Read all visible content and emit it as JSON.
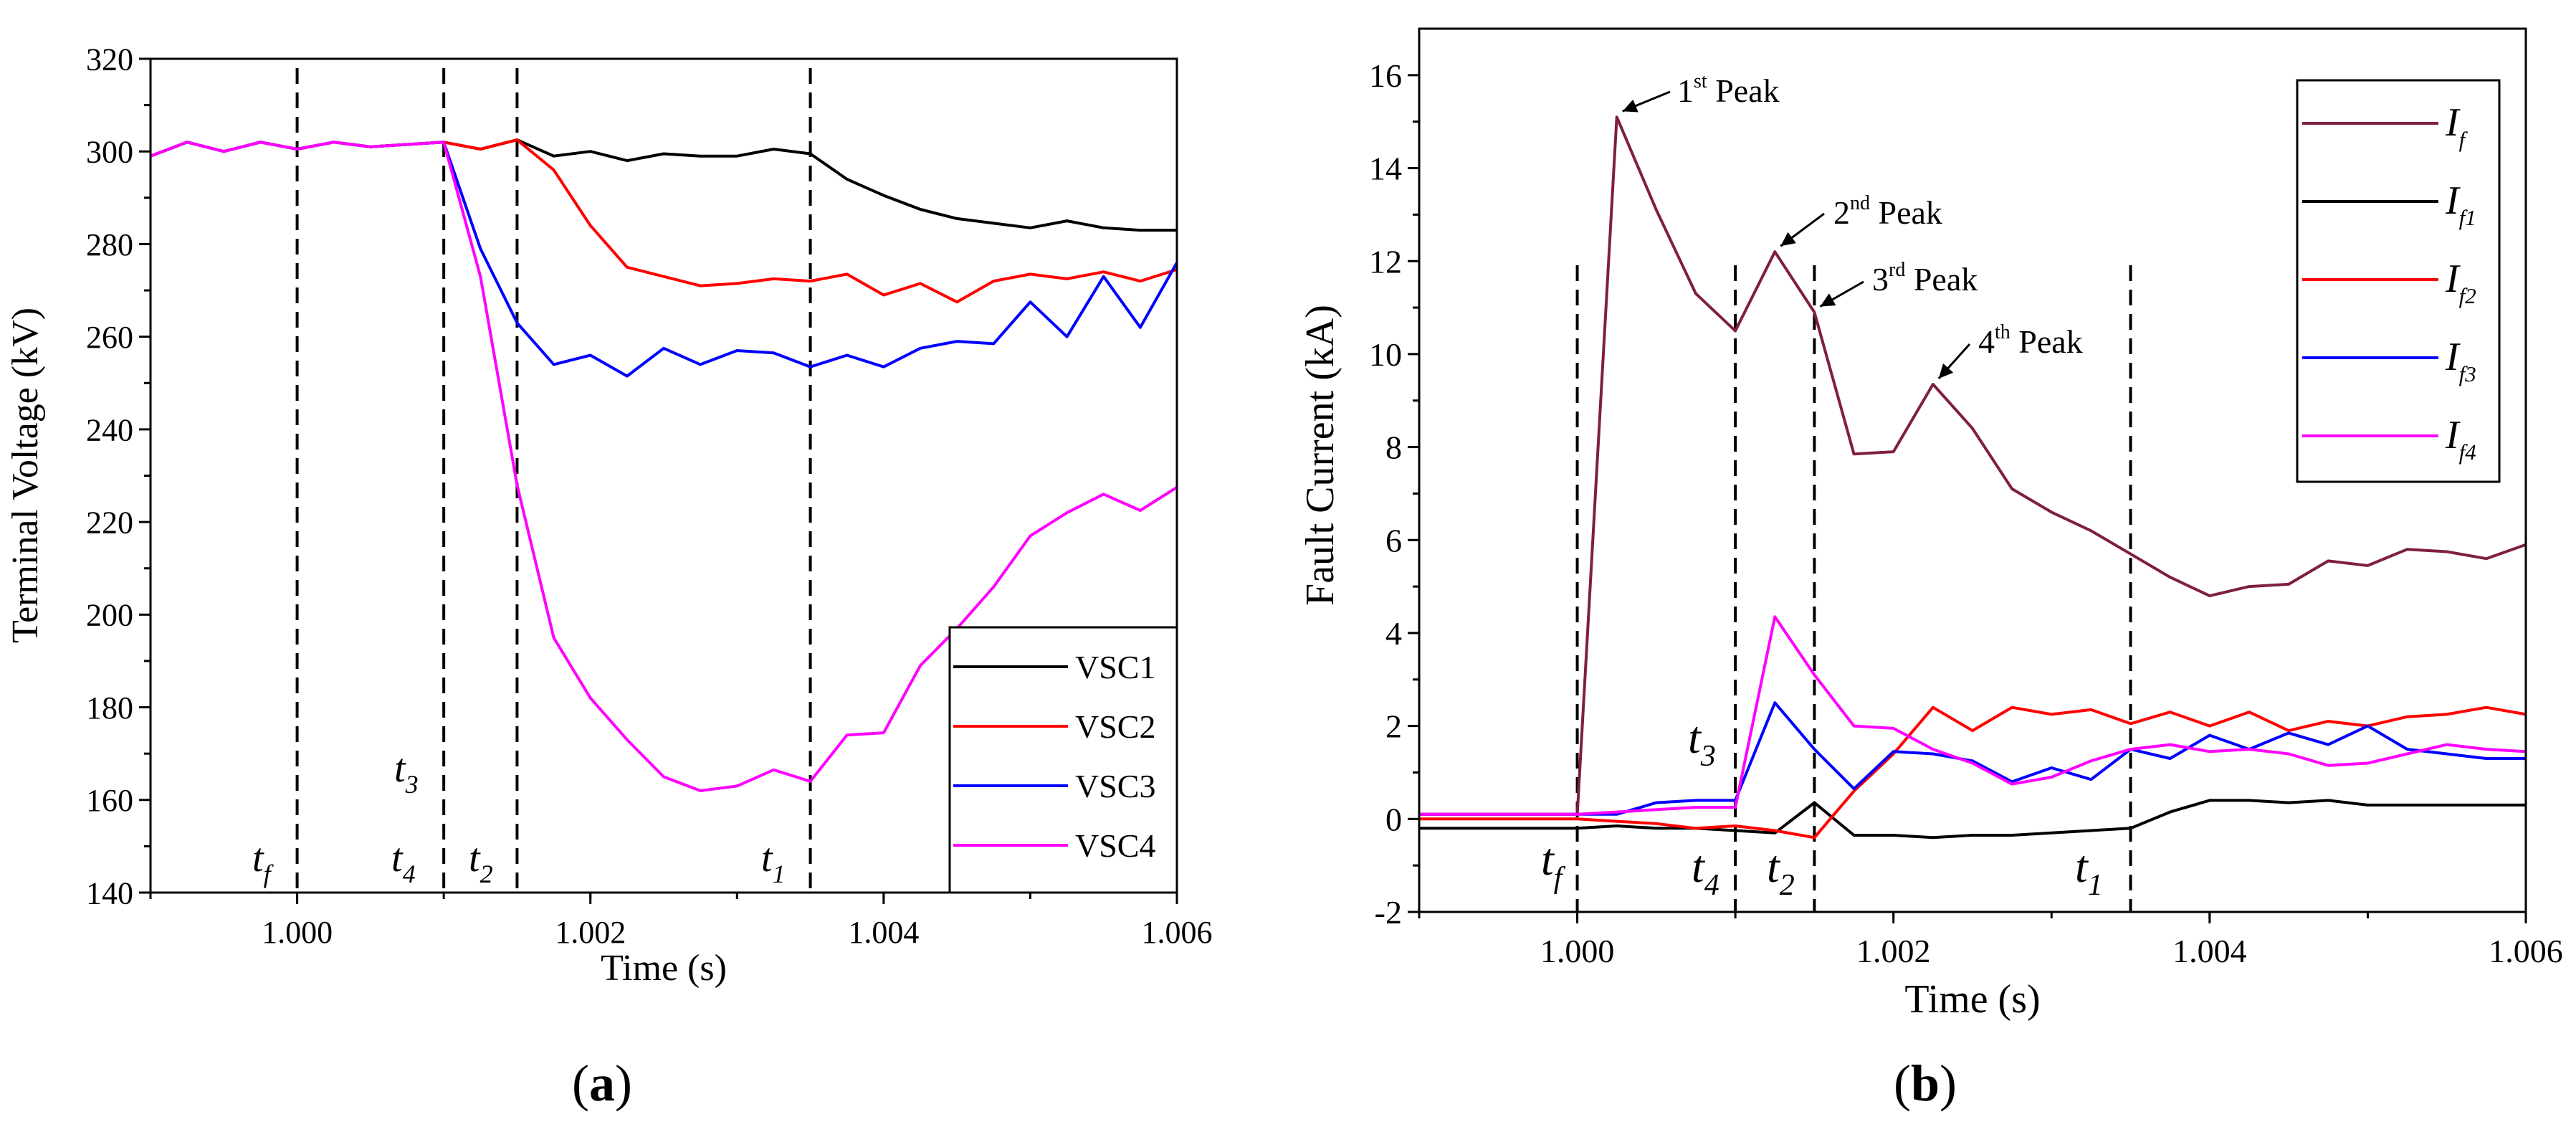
{
  "chart_data": [
    {
      "type": "line",
      "panel_label": "(a)",
      "panel_letter": "a",
      "xlabel": "Time (s)",
      "ylabel": "Terminal Voltage (kV)",
      "xlim": [
        0.999,
        1.006
      ],
      "ylim": [
        140,
        320
      ],
      "xticks": [
        1.0,
        1.002,
        1.004,
        1.006
      ],
      "xtick_labels": [
        "1.000",
        "1.002",
        "1.004",
        "1.006"
      ],
      "yticks": [
        140,
        160,
        180,
        200,
        220,
        240,
        260,
        280,
        300,
        320
      ],
      "ytick_labels": [
        "140",
        "160",
        "180",
        "200",
        "220",
        "240",
        "260",
        "280",
        "300",
        "320"
      ],
      "legend": [
        "VSC1",
        "VSC2",
        "VSC3",
        "VSC4"
      ],
      "markers": [
        {
          "x": 1.0,
          "main": "t",
          "sub": "f"
        },
        {
          "x": 1.001,
          "main": "t",
          "sub": "4"
        },
        {
          "x": 1.0015,
          "main": "t",
          "sub": "2"
        },
        {
          "x": 1.0035,
          "main": "t",
          "sub": "1"
        }
      ],
      "extra_labels": [
        {
          "main": "t",
          "sub": "3"
        }
      ],
      "series": [
        {
          "name": "VSC1",
          "color": "#000000",
          "x": [
            0.999,
            0.99925,
            0.9995,
            0.99975,
            1.0,
            1.00025,
            1.0005,
            1.00075,
            1.001,
            1.00125,
            1.0015,
            1.00175,
            1.002,
            1.00225,
            1.0025,
            1.00275,
            1.003,
            1.00325,
            1.0035,
            1.00375,
            1.004,
            1.00425,
            1.0045,
            1.00475,
            1.005,
            1.00525,
            1.0055,
            1.00575,
            1.006
          ],
          "y": [
            299.0,
            302.0,
            300.0,
            302.0,
            300.5,
            302.0,
            301.0,
            301.5,
            302.0,
            300.5,
            302.5,
            299.0,
            300.0,
            298.0,
            299.5,
            299.0,
            299.0,
            300.5,
            299.5,
            294.0,
            290.5,
            287.5,
            285.5,
            284.5,
            283.5,
            285.0,
            283.5,
            283.0,
            283.0
          ]
        },
        {
          "name": "VSC2",
          "color": "#ff0000",
          "x": [
            0.999,
            0.99925,
            0.9995,
            0.99975,
            1.0,
            1.00025,
            1.0005,
            1.00075,
            1.001,
            1.00125,
            1.0015,
            1.00175,
            1.002,
            1.00225,
            1.0025,
            1.00275,
            1.003,
            1.00325,
            1.0035,
            1.00375,
            1.004,
            1.00425,
            1.0045,
            1.00475,
            1.005,
            1.00525,
            1.0055,
            1.00575,
            1.006
          ],
          "y": [
            299.0,
            302.0,
            300.0,
            302.0,
            300.5,
            302.0,
            301.0,
            301.5,
            302.0,
            300.5,
            302.5,
            296.0,
            284.0,
            275.0,
            273.0,
            271.0,
            271.5,
            272.5,
            272.0,
            273.5,
            269.0,
            271.5,
            267.5,
            272.0,
            273.5,
            272.5,
            274.0,
            272.0,
            274.5
          ]
        },
        {
          "name": "VSC3",
          "color": "#0000ff",
          "x": [
            0.999,
            0.99925,
            0.9995,
            0.99975,
            1.0,
            1.00025,
            1.0005,
            1.00075,
            1.001,
            1.00125,
            1.0015,
            1.00175,
            1.002,
            1.00225,
            1.0025,
            1.00275,
            1.003,
            1.00325,
            1.0035,
            1.00375,
            1.004,
            1.00425,
            1.0045,
            1.00475,
            1.005,
            1.00525,
            1.0055,
            1.00575,
            1.006
          ],
          "y": [
            299.0,
            302.0,
            300.0,
            302.0,
            300.5,
            302.0,
            301.0,
            301.5,
            302.0,
            279.0,
            263.0,
            254.0,
            256.0,
            251.5,
            257.5,
            254.0,
            257.0,
            256.5,
            253.5,
            256.0,
            253.5,
            257.5,
            259.0,
            258.5,
            267.5,
            260.0,
            273.0,
            262.0,
            276.0
          ]
        },
        {
          "name": "VSC4",
          "color": "#ff00ff",
          "x": [
            0.999,
            0.99925,
            0.9995,
            0.99975,
            1.0,
            1.00025,
            1.0005,
            1.00075,
            1.001,
            1.00125,
            1.0015,
            1.00175,
            1.002,
            1.00225,
            1.0025,
            1.00275,
            1.003,
            1.00325,
            1.0035,
            1.00375,
            1.004,
            1.00425,
            1.0045,
            1.00475,
            1.005,
            1.00525,
            1.0055,
            1.00575,
            1.006
          ],
          "y": [
            299.0,
            302.0,
            300.0,
            302.0,
            300.5,
            302.0,
            301.0,
            301.5,
            302.0,
            273.0,
            228.0,
            195.0,
            182.0,
            173.0,
            165.0,
            162.0,
            163.0,
            166.5,
            164.0,
            174.0,
            174.5,
            189.0,
            197.0,
            206.0,
            217.0,
            222.0,
            226.0,
            222.5,
            227.5
          ]
        }
      ]
    },
    {
      "type": "line",
      "panel_label": "(b)",
      "panel_letter": "b",
      "xlabel": "Time (s)",
      "ylabel": "Fault Current (kA)",
      "xlim": [
        0.999,
        1.006
      ],
      "ylim": [
        -2,
        17
      ],
      "xticks": [
        1.0,
        1.002,
        1.004,
        1.006
      ],
      "xtick_labels": [
        "1.000",
        "1.002",
        "1.004",
        "1.006"
      ],
      "yticks": [
        -2,
        0,
        2,
        4,
        6,
        8,
        10,
        12,
        14,
        16
      ],
      "ytick_labels": [
        "-2",
        "0",
        "2",
        "4",
        "6",
        "8",
        "10",
        "12",
        "14",
        "16"
      ],
      "legend": [
        {
          "main": "I",
          "sub": "f"
        },
        {
          "main": "I",
          "sub": "f1"
        },
        {
          "main": "I",
          "sub": "f2"
        },
        {
          "main": "I",
          "sub": "f3"
        },
        {
          "main": "I",
          "sub": "f4"
        }
      ],
      "markers": [
        {
          "x": 1.0,
          "main": "t",
          "sub": "f"
        },
        {
          "x": 1.001,
          "main": "t",
          "sub": "4"
        },
        {
          "x": 1.0015,
          "main": "t",
          "sub": "2"
        },
        {
          "x": 1.0035,
          "main": "t",
          "sub": "1"
        }
      ],
      "extra_labels": [
        {
          "main": "t",
          "sub": "3"
        }
      ],
      "annotations": [
        {
          "num": "1",
          "sup": "st",
          "word": "Peak",
          "target_x": 1.00025,
          "target_y": 15.1
        },
        {
          "num": "2",
          "sup": "nd",
          "word": "Peak",
          "target_x": 1.00125,
          "target_y": 12.2
        },
        {
          "num": "3",
          "sup": "rd",
          "word": "Peak",
          "target_x": 1.0015,
          "target_y": 10.9
        },
        {
          "num": "4",
          "sup": "th",
          "word": "Peak",
          "target_x": 1.00225,
          "target_y": 9.35
        }
      ],
      "series": [
        {
          "name": "If",
          "color": "#7f1f3f",
          "x": [
            0.999,
            0.99925,
            0.9995,
            0.99975,
            1.0,
            1.00025,
            1.0005,
            1.00075,
            1.001,
            1.00125,
            1.0015,
            1.00175,
            1.002,
            1.00225,
            1.0025,
            1.00275,
            1.003,
            1.00325,
            1.0035,
            1.00375,
            1.004,
            1.00425,
            1.0045,
            1.00475,
            1.005,
            1.00525,
            1.0055,
            1.00575,
            1.006
          ],
          "y": [
            0.1,
            0.1,
            0.1,
            0.1,
            0.1,
            15.1,
            13.1,
            11.3,
            10.5,
            12.2,
            10.9,
            7.85,
            7.9,
            9.35,
            8.4,
            7.1,
            6.6,
            6.2,
            5.7,
            5.2,
            4.8,
            5.0,
            5.05,
            5.55,
            5.45,
            5.8,
            5.75,
            5.6,
            5.9
          ]
        },
        {
          "name": "If1",
          "color": "#000000",
          "x": [
            0.999,
            0.99925,
            0.9995,
            0.99975,
            1.0,
            1.00025,
            1.0005,
            1.00075,
            1.001,
            1.00125,
            1.0015,
            1.00175,
            1.002,
            1.00225,
            1.0025,
            1.00275,
            1.003,
            1.00325,
            1.0035,
            1.00375,
            1.004,
            1.00425,
            1.0045,
            1.00475,
            1.005,
            1.00525,
            1.0055,
            1.00575,
            1.006
          ],
          "y": [
            -0.2,
            -0.2,
            -0.2,
            -0.2,
            -0.2,
            -0.15,
            -0.2,
            -0.2,
            -0.25,
            -0.3,
            0.35,
            -0.35,
            -0.35,
            -0.4,
            -0.35,
            -0.35,
            -0.3,
            -0.25,
            -0.2,
            0.15,
            0.4,
            0.4,
            0.35,
            0.4,
            0.3,
            0.3,
            0.3,
            0.3,
            0.3
          ]
        },
        {
          "name": "If2",
          "color": "#ff0000",
          "x": [
            0.999,
            0.99925,
            0.9995,
            0.99975,
            1.0,
            1.00025,
            1.0005,
            1.00075,
            1.001,
            1.00125,
            1.0015,
            1.00175,
            1.002,
            1.00225,
            1.0025,
            1.00275,
            1.003,
            1.00325,
            1.0035,
            1.00375,
            1.004,
            1.00425,
            1.0045,
            1.00475,
            1.005,
            1.00525,
            1.0055,
            1.00575,
            1.006
          ],
          "y": [
            0.0,
            0.0,
            0.0,
            0.0,
            0.0,
            -0.05,
            -0.1,
            -0.2,
            -0.15,
            -0.25,
            -0.4,
            0.6,
            1.4,
            2.4,
            1.9,
            2.4,
            2.25,
            2.35,
            2.05,
            2.3,
            2.0,
            2.3,
            1.9,
            2.1,
            2.0,
            2.2,
            2.25,
            2.4,
            2.25
          ]
        },
        {
          "name": "If3",
          "color": "#0000ff",
          "x": [
            0.999,
            0.99925,
            0.9995,
            0.99975,
            1.0,
            1.00025,
            1.0005,
            1.00075,
            1.001,
            1.00125,
            1.0015,
            1.00175,
            1.002,
            1.00225,
            1.0025,
            1.00275,
            1.003,
            1.00325,
            1.0035,
            1.00375,
            1.004,
            1.00425,
            1.0045,
            1.00475,
            1.005,
            1.00525,
            1.0055,
            1.00575,
            1.006
          ],
          "y": [
            0.1,
            0.1,
            0.1,
            0.1,
            0.1,
            0.1,
            0.35,
            0.4,
            0.4,
            2.5,
            1.5,
            0.65,
            1.45,
            1.4,
            1.25,
            0.8,
            1.1,
            0.85,
            1.5,
            1.3,
            1.8,
            1.5,
            1.85,
            1.6,
            2.0,
            1.5,
            1.4,
            1.3,
            1.3
          ]
        },
        {
          "name": "If4",
          "color": "#ff00ff",
          "x": [
            0.999,
            0.99925,
            0.9995,
            0.99975,
            1.0,
            1.00025,
            1.0005,
            1.00075,
            1.001,
            1.00125,
            1.0015,
            1.00175,
            1.002,
            1.00225,
            1.0025,
            1.00275,
            1.003,
            1.00325,
            1.0035,
            1.00375,
            1.004,
            1.00425,
            1.0045,
            1.00475,
            1.005,
            1.00525,
            1.0055,
            1.00575,
            1.006
          ],
          "y": [
            0.1,
            0.1,
            0.1,
            0.1,
            0.1,
            0.15,
            0.2,
            0.25,
            0.25,
            4.35,
            3.1,
            2.0,
            1.95,
            1.5,
            1.2,
            0.75,
            0.9,
            1.25,
            1.5,
            1.6,
            1.45,
            1.5,
            1.4,
            1.15,
            1.2,
            1.4,
            1.6,
            1.5,
            1.45
          ]
        }
      ]
    }
  ]
}
